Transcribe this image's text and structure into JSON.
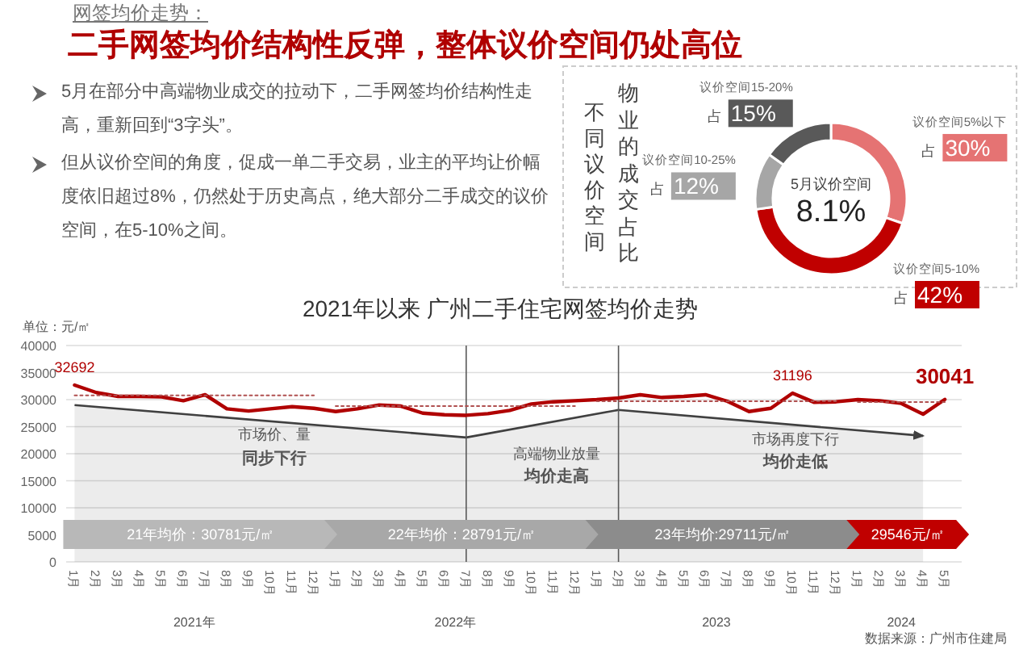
{
  "chart_data": [
    {
      "type": "other",
      "title": "网签均价走势：",
      "subtitle": "二手网签均价结构性反弹，整体议价空间仍处高位",
      "annotations": [
        "5月在部分中高端物业成交的拉动下，二手网签均价结构性走高，重新回到“3字头”。",
        "但从议价空间的角度，促成一单二手交易，业主的平均让价幅度依旧超过8%，仍然处于历史高点，绝大部分二手成交的议价空间，在5-10%之间。"
      ]
    },
    {
      "type": "donut",
      "title": "不同议价空间",
      "subtitle": "物业的成交占比",
      "categories": [
        "议价空间5%以下",
        "议价空间5-10%",
        "议价空间10-25%",
        "议价空间15-20%"
      ],
      "values": [
        30,
        42,
        12,
        15
      ],
      "colors": [
        "#e57373",
        "#c00000",
        "#a6a6a6",
        "#595959"
      ],
      "value_labels": [
        "占 30%",
        "占 42%",
        "占 12%",
        "占 15%"
      ],
      "annotations": [
        "5月议价空间",
        "8.1%"
      ]
    },
    {
      "type": "line",
      "title": "2021年以来 广州二手住宅网签均价走势",
      "ylabel": "单位：元/㎡",
      "x": [
        "2021-01",
        "2021-02",
        "2021-03",
        "2021-04",
        "2021-05",
        "2021-06",
        "2021-07",
        "2021-08",
        "2021-09",
        "2021-10",
        "2021-11",
        "2021-12",
        "2022-01",
        "2022-02",
        "2022-03",
        "2022-04",
        "2022-05",
        "2022-06",
        "2022-07",
        "2022-08",
        "2022-09",
        "2022-10",
        "2022-11",
        "2022-12",
        "2023-01",
        "2023-02",
        "2023-03",
        "2023-04",
        "2023-05",
        "2023-06",
        "2023-07",
        "2023-08",
        "2023-09",
        "2023-10",
        "2023-11",
        "2023-12",
        "2024-01",
        "2024-02",
        "2024-03",
        "2024-04",
        "2024-05"
      ],
      "xlim": [
        "2020-12-20",
        "2024-05-25"
      ],
      "xticks": [
        {
          "value": "2021-01",
          "label": "1月"
        },
        {
          "value": "2021-02",
          "label": "2月"
        },
        {
          "value": "2021-03",
          "label": "3月"
        },
        {
          "value": "2021-04",
          "label": "4月"
        },
        {
          "value": "2021-05",
          "label": "5月"
        },
        {
          "value": "2021-06",
          "label": "6月"
        },
        {
          "value": "2021-07",
          "label": "7月"
        },
        {
          "value": "2021-08",
          "label": "8月"
        },
        {
          "value": "2021-09",
          "label": "9月"
        },
        {
          "value": "2021-10",
          "label": "10月"
        },
        {
          "value": "2021-11",
          "label": "11月"
        },
        {
          "value": "2021-12",
          "label": "12月"
        },
        {
          "value": "2022-01",
          "label": "1月"
        },
        {
          "value": "2022-02",
          "label": "2月"
        },
        {
          "value": "2022-03",
          "label": "3月"
        },
        {
          "value": "2022-04",
          "label": "4月"
        },
        {
          "value": "2022-05",
          "label": "5月"
        },
        {
          "value": "2022-06",
          "label": "6月"
        },
        {
          "value": "2022-07",
          "label": "7月"
        },
        {
          "value": "2022-08",
          "label": "8月"
        },
        {
          "value": "2022-09",
          "label": "9月"
        },
        {
          "value": "2022-10",
          "label": "10月"
        },
        {
          "value": "2022-11",
          "label": "11月"
        },
        {
          "value": "2022-12",
          "label": "12月"
        },
        {
          "value": "2023-01",
          "label": "1月"
        },
        {
          "value": "2023-02",
          "label": "2月"
        },
        {
          "value": "2023-03",
          "label": "3月"
        },
        {
          "value": "2023-04",
          "label": "4月"
        },
        {
          "value": "2023-05",
          "label": "5月"
        },
        {
          "value": "2023-06",
          "label": "6月"
        },
        {
          "value": "2023-07",
          "label": "7月"
        },
        {
          "value": "2023-08",
          "label": "8月"
        },
        {
          "value": "2023-09",
          "label": "9月"
        },
        {
          "value": "2023-10",
          "label": "10月"
        },
        {
          "value": "2023-11",
          "label": "11月"
        },
        {
          "value": "2023-12",
          "label": "12月"
        },
        {
          "value": "2024-01",
          "label": "1月"
        },
        {
          "value": "2024-02",
          "label": "2月"
        },
        {
          "value": "2024-03",
          "label": "3月"
        },
        {
          "value": "2024-04",
          "label": "4月"
        },
        {
          "value": "2024-05",
          "label": "5月"
        }
      ],
      "ylim": [
        0,
        40000
      ],
      "yticks": [
        0,
        5000,
        10000,
        15000,
        20000,
        25000,
        30000,
        35000,
        40000
      ],
      "grid": "y",
      "series": [
        {
          "type": "line",
          "color": "#b00000",
          "values": [
            32692,
            31300,
            30600,
            30600,
            30500,
            29800,
            30900,
            28300,
            27900,
            28300,
            28700,
            28400,
            27800,
            28300,
            29000,
            28800,
            27500,
            27200,
            27100,
            27400,
            28000,
            29200,
            29600,
            29800,
            30000,
            30300,
            30900,
            30400,
            30600,
            30900,
            29700,
            27800,
            28400,
            31196,
            29500,
            29600,
            30000,
            29800,
            29300,
            27300,
            30041
          ],
          "value_labels": [
            "32692",
            null,
            null,
            null,
            null,
            null,
            null,
            null,
            null,
            null,
            null,
            null,
            null,
            null,
            null,
            null,
            null,
            null,
            null,
            null,
            null,
            null,
            null,
            null,
            null,
            null,
            null,
            null,
            null,
            null,
            null,
            null,
            null,
            "31196",
            null,
            null,
            null,
            null,
            null,
            null,
            "30041"
          ]
        },
        {
          "type": "area",
          "color": "#404040",
          "x": [
            "2021-01",
            "2022-07",
            "2023-02",
            "2024-04"
          ],
          "values": [
            29000,
            23000,
            28100,
            23300
          ]
        },
        {
          "type": "line",
          "line_style": "dotted",
          "color": "#b05050",
          "x": [
            "2021-01",
            "2021-12"
          ],
          "values": [
            30781,
            30781
          ]
        },
        {
          "type": "line",
          "line_style": "dotted",
          "color": "#b05050",
          "x": [
            "2022-01",
            "2022-12"
          ],
          "values": [
            28791,
            28791
          ]
        },
        {
          "type": "line",
          "line_style": "dotted",
          "color": "#b05050",
          "x": [
            "2023-01",
            "2023-12"
          ],
          "values": [
            29711,
            29711
          ]
        },
        {
          "type": "line",
          "line_style": "dotted",
          "color": "#b05050",
          "x": [
            "2024-01",
            "2024-05"
          ],
          "values": [
            29546,
            29546
          ]
        }
      ],
      "ref_lines": [
        {
          "axis": "x",
          "value": "2022-07",
          "color": "#595959"
        },
        {
          "axis": "x",
          "value": "2023-02",
          "color": "#595959"
        }
      ],
      "annotations": [
        "21年均价：30781元/㎡",
        "22年均价：28791元/㎡",
        "23年均价:29711元/㎡",
        "29546元/㎡",
        "市场价、量",
        "同步下行",
        "高端物业放量",
        "均价走高",
        "市场再度下行",
        "均价走低",
        "数据来源：广州市住建局",
        "2021年",
        "2022年",
        "2023",
        "2024"
      ]
    }
  ]
}
